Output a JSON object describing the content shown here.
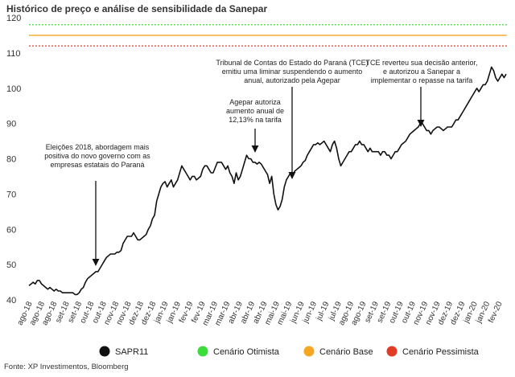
{
  "title": "Histórico de preço e análise de sensibilidade da Sanepar",
  "source": "Fonte: XP Investimentos, Bloomberg",
  "chart_data": {
    "type": "line",
    "ylim": [
      40,
      120
    ],
    "yticks": [
      40,
      50,
      60,
      70,
      80,
      90,
      100,
      110,
      120
    ],
    "grid": false,
    "legend_position": "bottom",
    "xticks": [
      "ago-18",
      "ago-18",
      "ago-18",
      "set-18",
      "set-18",
      "out-18",
      "out-18",
      "nov-18",
      "nov-18",
      "dez-18",
      "dez-18",
      "jan-19",
      "jan-19",
      "fev-19",
      "fev-19",
      "mar-19",
      "mar-19",
      "abr-19",
      "abr-19",
      "abr-19",
      "mai-19",
      "mai-19",
      "jun-19",
      "jun-19",
      "jul-19",
      "jul-19",
      "ago-19",
      "ago-19",
      "set-19",
      "set-19",
      "out-19",
      "out-19",
      "nov-19",
      "nov-19",
      "dez-19",
      "dez-19",
      "jan-20",
      "jan-20",
      "fev-20"
    ],
    "series": [
      {
        "name": "SAPR11",
        "color": "#111111",
        "values": [
          44,
          44.5,
          45,
          44.5,
          45.5,
          45.5,
          44.5,
          44,
          43.5,
          43,
          43.5,
          43,
          42.5,
          43,
          42.5,
          42.5,
          42,
          42,
          42,
          42,
          42,
          42,
          41.5,
          41.5,
          42,
          43,
          43.5,
          45,
          46,
          46.5,
          47,
          47.5,
          48,
          48,
          49,
          50,
          51,
          52,
          52.5,
          53,
          53,
          53,
          53.5,
          53.5,
          54,
          56,
          57,
          58,
          58,
          58,
          59,
          58,
          57,
          57,
          57.5,
          58,
          58.5,
          60,
          61,
          63,
          64,
          68,
          70,
          72,
          73,
          73.5,
          72,
          73,
          74,
          72,
          73,
          74,
          76,
          78,
          77,
          76,
          75,
          74,
          75,
          75,
          74,
          74.5,
          75,
          77,
          78,
          78,
          77,
          76,
          76,
          77.5,
          79,
          79,
          79,
          78,
          77,
          78,
          76,
          75,
          73,
          76,
          74,
          75,
          77,
          79,
          81,
          80,
          80,
          79,
          79,
          78.5,
          79,
          78.5,
          77.5,
          76.5,
          75.5,
          73,
          75,
          70,
          67,
          65.5,
          66.5,
          68.5,
          72,
          74,
          75,
          76,
          75,
          76.5,
          77,
          77.5,
          78,
          79,
          79.5,
          81,
          82,
          83,
          84,
          84,
          84.5,
          84,
          84.5,
          85,
          84,
          83,
          82,
          84,
          85,
          83,
          80,
          78,
          79,
          80,
          81,
          82,
          82,
          83,
          84,
          84,
          85,
          84,
          84,
          83,
          82,
          83,
          82,
          82,
          82,
          82,
          81,
          82,
          82,
          81,
          81,
          80,
          81,
          82,
          82,
          83,
          84,
          84.5,
          85,
          86,
          87,
          87.5,
          88,
          88.5,
          89,
          90,
          90,
          89,
          88,
          88,
          87,
          88,
          88.5,
          89,
          89,
          88.5,
          88,
          88.5,
          89,
          89,
          89,
          90,
          91,
          91,
          92,
          93,
          94,
          95,
          96,
          97,
          98,
          99,
          100,
          99,
          100,
          101,
          101,
          102,
          104,
          106,
          105,
          103,
          102,
          103,
          104,
          103,
          104
        ]
      },
      {
        "name": "Cenário Otimista",
        "color": "#3ddc3d",
        "dashed": true,
        "value": 118
      },
      {
        "name": "Cenário Base",
        "color": "#f5a623",
        "dashed": false,
        "value": 115
      },
      {
        "name": "Cenário Pessimista",
        "color": "#e03b24",
        "dashed": true,
        "value": 112
      }
    ],
    "annotations": [
      {
        "lines": [
          "Eleições 2018, abordagem mais",
          "positiva do novo governo com as",
          "empresas estatais do Paraná"
        ]
      },
      {
        "lines": [
          "Agepar autoriza",
          "aumento anual de",
          "12,13% na tarifa"
        ]
      },
      {
        "lines": [
          "Tribunal de Contas do Estado do Paraná (TCE)",
          "emitiu uma liminar suspendendo o aumento",
          "anual, autorizado pela Agepar"
        ]
      },
      {
        "lines": [
          "TCE reverteu sua decisão anterior,",
          "e autorizou a Sanepar a",
          "implementar o repasse na tarifa"
        ]
      }
    ]
  }
}
